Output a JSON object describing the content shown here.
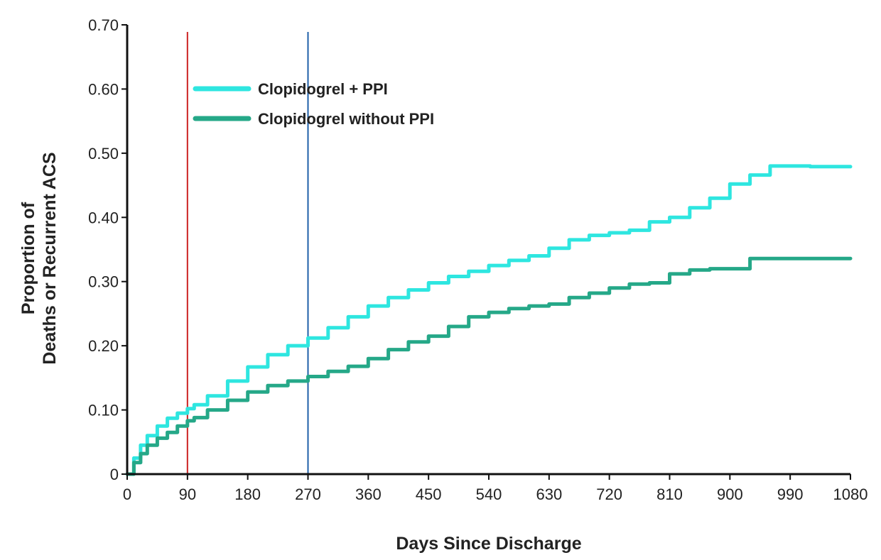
{
  "chart_data": {
    "type": "line",
    "xlabel": "Days Since Discharge",
    "ylabel_line1": "Proportion of",
    "ylabel_line2": "Deaths or Recurrent ACS",
    "xlim": [
      0,
      1080
    ],
    "ylim": [
      0,
      0.7
    ],
    "x_ticks": [
      0,
      90,
      180,
      270,
      360,
      450,
      540,
      630,
      720,
      810,
      900,
      990,
      1080
    ],
    "x_tick_labels": [
      "0",
      "90",
      "180",
      "270",
      "360",
      "450",
      "540",
      "630",
      "720",
      "810",
      "900",
      "990",
      "1080"
    ],
    "y_ticks": [
      0,
      0.1,
      0.2,
      0.3,
      0.4,
      0.5,
      0.6,
      0.7
    ],
    "y_tick_labels": [
      "0",
      "0.10",
      "0.20",
      "0.30",
      "0.40",
      "0.50",
      "0.60",
      "0.70"
    ],
    "grid": false,
    "legend_position": "top-left",
    "reference_lines": [
      {
        "x": 90,
        "color": "#cc2222"
      },
      {
        "x": 270,
        "color": "#1f5fa8"
      }
    ],
    "series": [
      {
        "name": "Clopidogrel + PPI",
        "color": "#2ee6e0",
        "x": [
          0,
          10,
          20,
          30,
          45,
          60,
          75,
          90,
          100,
          120,
          150,
          180,
          210,
          240,
          270,
          300,
          330,
          360,
          390,
          420,
          450,
          480,
          510,
          540,
          570,
          600,
          630,
          660,
          690,
          720,
          750,
          780,
          810,
          840,
          870,
          900,
          930,
          960,
          990,
          1020,
          1050,
          1080
        ],
        "y": [
          0,
          0.025,
          0.045,
          0.06,
          0.075,
          0.087,
          0.095,
          0.102,
          0.108,
          0.122,
          0.145,
          0.167,
          0.186,
          0.2,
          0.212,
          0.228,
          0.245,
          0.262,
          0.275,
          0.287,
          0.298,
          0.308,
          0.316,
          0.325,
          0.333,
          0.34,
          0.352,
          0.365,
          0.372,
          0.376,
          0.38,
          0.393,
          0.4,
          0.415,
          0.43,
          0.452,
          0.466,
          0.48,
          0.48,
          0.479,
          0.479,
          0.479
        ]
      },
      {
        "name": "Clopidogrel without PPI",
        "color": "#25a888",
        "x": [
          0,
          10,
          20,
          30,
          45,
          60,
          75,
          90,
          100,
          120,
          150,
          180,
          210,
          240,
          270,
          300,
          330,
          360,
          390,
          420,
          450,
          480,
          510,
          540,
          570,
          600,
          630,
          660,
          690,
          720,
          750,
          780,
          810,
          840,
          870,
          900,
          930,
          960,
          990,
          1020,
          1050,
          1080
        ],
        "y": [
          0,
          0.018,
          0.032,
          0.045,
          0.056,
          0.065,
          0.075,
          0.083,
          0.088,
          0.1,
          0.115,
          0.128,
          0.138,
          0.145,
          0.152,
          0.16,
          0.168,
          0.18,
          0.194,
          0.206,
          0.215,
          0.23,
          0.245,
          0.252,
          0.258,
          0.262,
          0.265,
          0.275,
          0.282,
          0.29,
          0.296,
          0.298,
          0.312,
          0.318,
          0.32,
          0.32,
          0.336,
          0.336,
          0.336,
          0.336,
          0.336,
          0.336
        ]
      }
    ]
  }
}
